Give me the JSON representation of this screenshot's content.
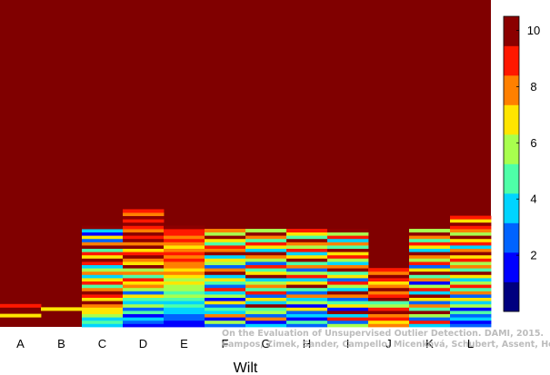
{
  "chart_data": {
    "type": "heatmap",
    "title": "",
    "xlabel": "Wilt",
    "ylabel": "",
    "categories": [
      "A",
      "B",
      "C",
      "D",
      "E",
      "F",
      "G",
      "H",
      "I",
      "J",
      "K",
      "L"
    ],
    "n_rows": 100,
    "colorbar": {
      "range": [
        0,
        10.5
      ],
      "ticks": [
        "2",
        "4",
        "6",
        "8",
        "10"
      ],
      "colormap": "jet",
      "colors": [
        "#00007f",
        "#0000ff",
        "#0063ff",
        "#00d4ff",
        "#4effa8",
        "#a8ff4e",
        "#ffe500",
        "#ff8000",
        "#ff1800",
        "#8b0000"
      ]
    },
    "columns": [
      {
        "name": "A",
        "cells": [
          [
            4,
            6
          ],
          [
            7,
            8
          ],
          [
            15,
            16
          ],
          [
            17,
            18
          ],
          [
            19,
            20
          ],
          [
            21,
            22
          ],
          [
            26,
            27
          ],
          [
            27,
            28
          ],
          [
            28,
            29
          ]
        ]
      },
      {
        "name": "B",
        "cells": [
          [
            6,
            6
          ],
          [
            15,
            16
          ],
          [
            17,
            18
          ],
          [
            19,
            20
          ],
          [
            21,
            22
          ],
          [
            26,
            27
          ],
          [
            27,
            28
          ],
          [
            28,
            29
          ]
        ]
      },
      {
        "name": "C",
        "cells": [
          [
            1,
            3
          ],
          [
            2,
            4
          ],
          [
            3,
            3
          ],
          [
            4,
            5
          ],
          [
            5,
            6
          ],
          [
            6,
            6
          ],
          [
            7,
            7
          ],
          [
            8,
            9
          ],
          [
            9,
            6
          ],
          [
            10,
            8
          ],
          [
            11,
            9
          ],
          [
            12,
            7
          ],
          [
            13,
            4
          ],
          [
            14,
            8
          ],
          [
            15,
            6
          ],
          [
            16,
            3
          ],
          [
            17,
            7
          ],
          [
            18,
            5
          ],
          [
            19,
            3
          ],
          [
            20,
            8
          ],
          [
            21,
            9
          ],
          [
            22,
            6
          ],
          [
            23,
            8
          ],
          [
            24,
            4
          ],
          [
            25,
            9
          ],
          [
            26,
            7
          ],
          [
            27,
            2
          ],
          [
            28,
            6
          ],
          [
            29,
            1
          ],
          [
            30,
            3
          ],
          [
            31,
            9
          ]
        ]
      },
      {
        "name": "D",
        "cells": [
          [
            1,
            1
          ],
          [
            2,
            2
          ],
          [
            3,
            3
          ],
          [
            4,
            1
          ],
          [
            5,
            4
          ],
          [
            6,
            2
          ],
          [
            7,
            5
          ],
          [
            8,
            3
          ],
          [
            9,
            4
          ],
          [
            10,
            6
          ],
          [
            11,
            2
          ],
          [
            12,
            5
          ],
          [
            13,
            7
          ],
          [
            14,
            6
          ],
          [
            15,
            8
          ],
          [
            16,
            4
          ],
          [
            17,
            7
          ],
          [
            18,
            5
          ],
          [
            19,
            9
          ],
          [
            20,
            6
          ],
          [
            21,
            7
          ],
          [
            22,
            9
          ],
          [
            23,
            8
          ],
          [
            24,
            6
          ],
          [
            25,
            9
          ],
          [
            26,
            7
          ],
          [
            27,
            9
          ],
          [
            28,
            8
          ],
          [
            29,
            9
          ],
          [
            30,
            7
          ],
          [
            31,
            8
          ],
          [
            32,
            9
          ],
          [
            33,
            8
          ],
          [
            34,
            9
          ],
          [
            35,
            7
          ],
          [
            36,
            8
          ]
        ]
      },
      {
        "name": "E",
        "cells": [
          [
            1,
            1
          ],
          [
            2,
            1
          ],
          [
            3,
            2
          ],
          [
            4,
            2
          ],
          [
            5,
            3
          ],
          [
            6,
            3
          ],
          [
            7,
            4
          ],
          [
            8,
            3
          ],
          [
            9,
            4
          ],
          [
            10,
            5
          ],
          [
            11,
            4
          ],
          [
            12,
            5
          ],
          [
            13,
            5
          ],
          [
            14,
            6
          ],
          [
            15,
            5
          ],
          [
            16,
            6
          ],
          [
            17,
            7
          ],
          [
            18,
            6
          ],
          [
            19,
            7
          ],
          [
            20,
            7
          ],
          [
            21,
            8
          ],
          [
            22,
            7
          ],
          [
            23,
            8
          ],
          [
            24,
            7
          ],
          [
            25,
            6
          ],
          [
            26,
            7
          ],
          [
            27,
            8
          ],
          [
            28,
            7
          ],
          [
            29,
            8
          ],
          [
            30,
            8
          ],
          [
            31,
            9
          ]
        ]
      },
      {
        "name": "F",
        "cells": [
          [
            1,
            2
          ],
          [
            2,
            5
          ],
          [
            3,
            1
          ],
          [
            4,
            7
          ],
          [
            5,
            3
          ],
          [
            6,
            4
          ],
          [
            7,
            2
          ],
          [
            8,
            6
          ],
          [
            9,
            1
          ],
          [
            10,
            5
          ],
          [
            11,
            3
          ],
          [
            12,
            8
          ],
          [
            13,
            2
          ],
          [
            14,
            4
          ],
          [
            15,
            6
          ],
          [
            16,
            3
          ],
          [
            17,
            9
          ],
          [
            18,
            7
          ],
          [
            19,
            2
          ],
          [
            20,
            5
          ],
          [
            21,
            6
          ],
          [
            22,
            3
          ],
          [
            23,
            9
          ],
          [
            24,
            7
          ],
          [
            25,
            8
          ],
          [
            26,
            4
          ],
          [
            27,
            6
          ],
          [
            28,
            9
          ],
          [
            29,
            5
          ],
          [
            30,
            7
          ]
        ]
      },
      {
        "name": "G",
        "cells": [
          [
            1,
            3
          ],
          [
            2,
            1
          ],
          [
            3,
            7
          ],
          [
            4,
            2
          ],
          [
            5,
            5
          ],
          [
            6,
            4
          ],
          [
            7,
            9
          ],
          [
            8,
            3
          ],
          [
            9,
            6
          ],
          [
            10,
            2
          ],
          [
            11,
            8
          ],
          [
            12,
            4
          ],
          [
            13,
            7
          ],
          [
            14,
            5
          ],
          [
            15,
            3
          ],
          [
            16,
            9
          ],
          [
            17,
            6
          ],
          [
            18,
            4
          ],
          [
            19,
            8
          ],
          [
            20,
            2
          ],
          [
            21,
            5
          ],
          [
            22,
            7
          ],
          [
            23,
            9
          ],
          [
            24,
            3
          ],
          [
            25,
            6
          ],
          [
            26,
            8
          ],
          [
            27,
            4
          ],
          [
            28,
            7
          ],
          [
            29,
            9
          ],
          [
            30,
            5
          ]
        ]
      },
      {
        "name": "H",
        "cells": [
          [
            1,
            2
          ],
          [
            2,
            4
          ],
          [
            3,
            1
          ],
          [
            4,
            3
          ],
          [
            5,
            2
          ],
          [
            6,
            6
          ],
          [
            7,
            1
          ],
          [
            8,
            5
          ],
          [
            9,
            3
          ],
          [
            10,
            7
          ],
          [
            11,
            2
          ],
          [
            12,
            4
          ],
          [
            13,
            9
          ],
          [
            14,
            6
          ],
          [
            15,
            3
          ],
          [
            16,
            8
          ],
          [
            17,
            5
          ],
          [
            18,
            2
          ],
          [
            19,
            7
          ],
          [
            20,
            4
          ],
          [
            21,
            9
          ],
          [
            22,
            6
          ],
          [
            23,
            3
          ],
          [
            24,
            8
          ],
          [
            25,
            5
          ],
          [
            26,
            7
          ],
          [
            27,
            9
          ],
          [
            28,
            4
          ],
          [
            29,
            6
          ],
          [
            30,
            8
          ]
        ]
      },
      {
        "name": "I",
        "cells": [
          [
            1,
            5
          ],
          [
            2,
            2
          ],
          [
            3,
            8
          ],
          [
            4,
            3
          ],
          [
            5,
            9
          ],
          [
            6,
            1
          ],
          [
            7,
            6
          ],
          [
            8,
            4
          ],
          [
            9,
            2
          ],
          [
            10,
            7
          ],
          [
            11,
            9
          ],
          [
            12,
            3
          ],
          [
            13,
            5
          ],
          [
            14,
            8
          ],
          [
            15,
            2
          ],
          [
            16,
            6
          ],
          [
            17,
            4
          ],
          [
            18,
            9
          ],
          [
            19,
            7
          ],
          [
            20,
            3
          ],
          [
            21,
            5
          ],
          [
            22,
            8
          ],
          [
            23,
            6
          ],
          [
            24,
            9
          ],
          [
            25,
            4
          ],
          [
            26,
            7
          ],
          [
            27,
            3
          ],
          [
            28,
            8
          ],
          [
            29,
            5
          ],
          [
            30,
            9
          ]
        ]
      },
      {
        "name": "J",
        "cells": [
          [
            1,
            7
          ],
          [
            2,
            6
          ],
          [
            3,
            8
          ],
          [
            4,
            7
          ],
          [
            5,
            9
          ],
          [
            6,
            8
          ],
          [
            7,
            5
          ],
          [
            8,
            4
          ],
          [
            9,
            9
          ],
          [
            10,
            8
          ],
          [
            11,
            7
          ],
          [
            12,
            9
          ],
          [
            13,
            7
          ],
          [
            14,
            6
          ],
          [
            15,
            8
          ],
          [
            16,
            9
          ],
          [
            17,
            7
          ],
          [
            18,
            8
          ]
        ]
      },
      {
        "name": "K",
        "cells": [
          [
            1,
            3
          ],
          [
            2,
            8
          ],
          [
            3,
            2
          ],
          [
            4,
            5
          ],
          [
            5,
            9
          ],
          [
            6,
            4
          ],
          [
            7,
            7
          ],
          [
            8,
            2
          ],
          [
            9,
            6
          ],
          [
            10,
            9
          ],
          [
            11,
            3
          ],
          [
            12,
            8
          ],
          [
            13,
            5
          ],
          [
            14,
            1
          ],
          [
            15,
            7
          ],
          [
            16,
            4
          ],
          [
            17,
            9
          ],
          [
            18,
            6
          ],
          [
            19,
            2
          ],
          [
            20,
            8
          ],
          [
            21,
            5
          ],
          [
            22,
            7
          ],
          [
            23,
            9
          ],
          [
            24,
            3
          ],
          [
            25,
            6
          ],
          [
            26,
            8
          ],
          [
            27,
            4
          ],
          [
            28,
            7
          ],
          [
            29,
            9
          ],
          [
            30,
            5
          ]
        ]
      },
      {
        "name": "L",
        "cells": [
          [
            1,
            2
          ],
          [
            2,
            1
          ],
          [
            3,
            3
          ],
          [
            4,
            2
          ],
          [
            5,
            4
          ],
          [
            6,
            1
          ],
          [
            7,
            5
          ],
          [
            8,
            3
          ],
          [
            9,
            6
          ],
          [
            10,
            2
          ],
          [
            11,
            7
          ],
          [
            12,
            4
          ],
          [
            13,
            8
          ],
          [
            14,
            5
          ],
          [
            15,
            3
          ],
          [
            16,
            6
          ],
          [
            17,
            9
          ],
          [
            18,
            4
          ],
          [
            19,
            7
          ],
          [
            20,
            5
          ],
          [
            21,
            8
          ],
          [
            22,
            6
          ],
          [
            23,
            9
          ],
          [
            24,
            7
          ],
          [
            25,
            3
          ],
          [
            26,
            8
          ],
          [
            27,
            6
          ],
          [
            28,
            9
          ],
          [
            29,
            5
          ],
          [
            30,
            7
          ],
          [
            31,
            8
          ],
          [
            32,
            9
          ],
          [
            33,
            6
          ],
          [
            34,
            8
          ]
        ]
      }
    ]
  },
  "watermark": {
    "line1": "On the Evaluation of Unsupervised Outlier Detection. DAMI, 2015.",
    "line2": "Campos, Zimek, Sander, Campello, Micenková, Schubert, Assent, Houle"
  }
}
